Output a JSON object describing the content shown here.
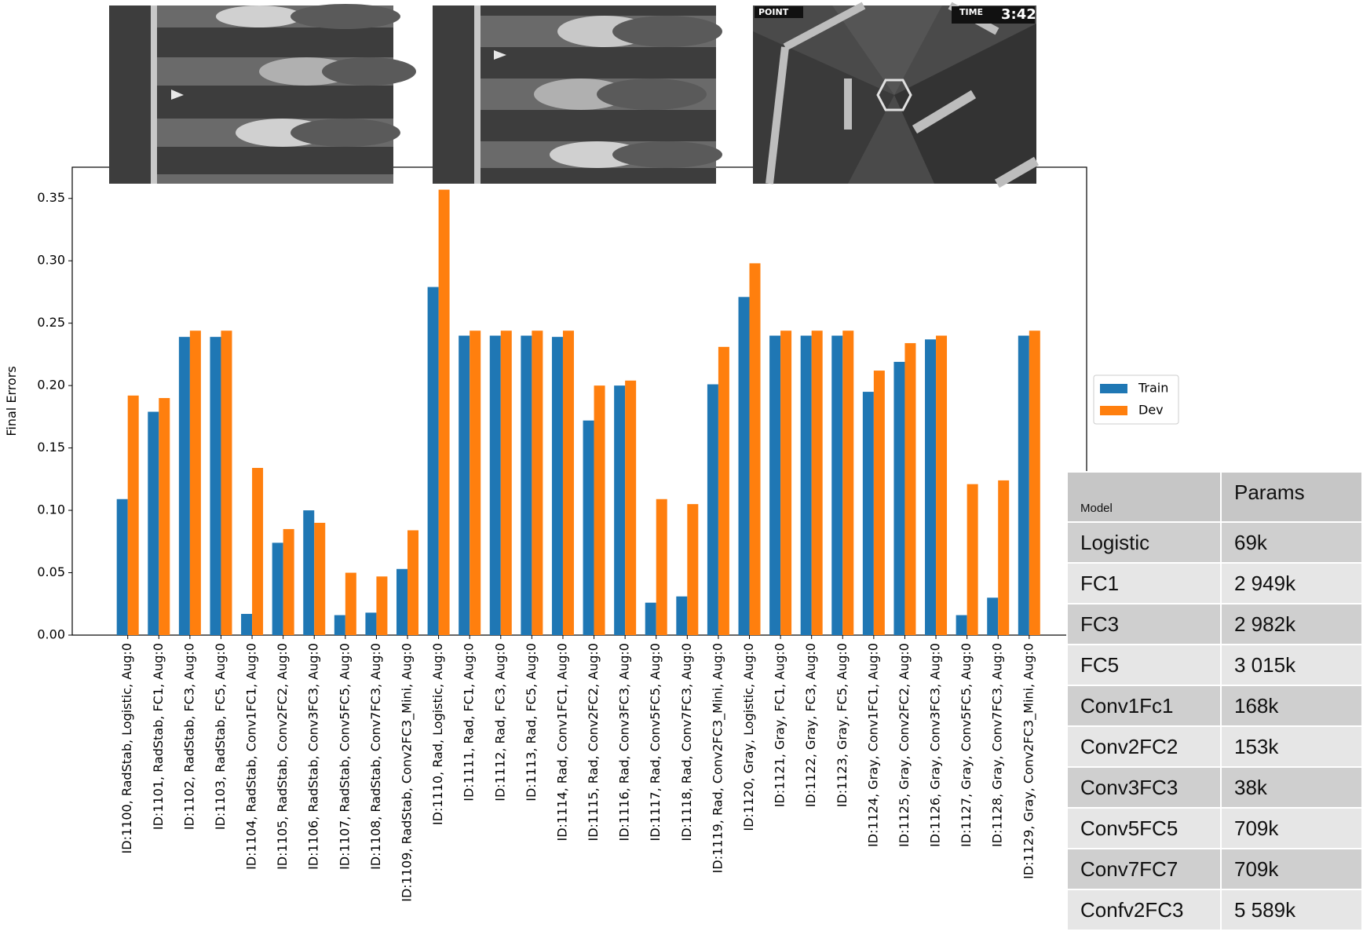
{
  "chart_data": {
    "type": "bar",
    "ylabel": "Final Errors",
    "categories": [
      "ID:1100, RadStab, Logistic, Aug:0",
      "ID:1101, RadStab, FC1, Aug:0",
      "ID:1102, RadStab, FC3, Aug:0",
      "ID:1103, RadStab, FC5, Aug:0",
      "ID:1104, RadStab, Conv1FC1, Aug:0",
      "ID:1105, RadStab, Conv2FC2, Aug:0",
      "ID:1106, RadStab, Conv3FC3, Aug:0",
      "ID:1107, RadStab, Conv5FC5, Aug:0",
      "ID:1108, RadStab, Conv7FC3, Aug:0",
      "ID:1109, RadStab, Conv2FC3_Mini, Aug:0",
      "ID:1110, Rad, Logistic, Aug:0",
      "ID:1111, Rad, FC1, Aug:0",
      "ID:1112, Rad, FC3, Aug:0",
      "ID:1113, Rad, FC5, Aug:0",
      "ID:1114, Rad, Conv1FC1, Aug:0",
      "ID:1115, Rad, Conv2FC2, Aug:0",
      "ID:1116, Rad, Conv3FC3, Aug:0",
      "ID:1117, Rad, Conv5FC5, Aug:0",
      "ID:1118, Rad, Conv7FC3, Aug:0",
      "ID:1119, Rad, Conv2FC3_Mini, Aug:0",
      "ID:1120, Gray, Logistic, Aug:0",
      "ID:1121, Gray, FC1, Aug:0",
      "ID:1122, Gray, FC3, Aug:0",
      "ID:1123, Gray, FC5, Aug:0",
      "ID:1124, Gray, Conv1FC1, Aug:0",
      "ID:1125, Gray, Conv2FC2, Aug:0",
      "ID:1126, Gray, Conv3FC3, Aug:0",
      "ID:1127, Gray, Conv5FC5, Aug:0",
      "ID:1128, Gray, Conv7FC3, Aug:0",
      "ID:1129, Gray, Conv2FC3_Mini, Aug:0"
    ],
    "series": [
      {
        "name": "Train",
        "color": "#1f77b4",
        "values": [
          0.109,
          0.179,
          0.239,
          0.239,
          0.017,
          0.074,
          0.1,
          0.016,
          0.018,
          0.053,
          0.279,
          0.24,
          0.24,
          0.24,
          0.239,
          0.172,
          0.2,
          0.026,
          0.031,
          0.201,
          0.271,
          0.24,
          0.24,
          0.24,
          0.195,
          0.219,
          0.237,
          0.016,
          0.03,
          0.24
        ]
      },
      {
        "name": "Dev",
        "color": "#ff7f0e",
        "values": [
          0.192,
          0.19,
          0.244,
          0.244,
          0.134,
          0.085,
          0.09,
          0.05,
          0.047,
          0.084,
          0.357,
          0.244,
          0.244,
          0.244,
          0.244,
          0.2,
          0.204,
          0.109,
          0.105,
          0.231,
          0.298,
          0.244,
          0.244,
          0.244,
          0.212,
          0.234,
          0.24,
          0.121,
          0.124,
          0.244
        ]
      }
    ],
    "ylim": [
      0,
      0.375
    ],
    "yticks": [
      {
        "value": 0,
        "label": "0.00"
      },
      {
        "value": 0.05,
        "label": "0.05"
      },
      {
        "value": 0.1,
        "label": "0.10"
      },
      {
        "value": 0.15,
        "label": "0.15"
      },
      {
        "value": 0.2,
        "label": "0.20"
      },
      {
        "value": 0.25,
        "label": "0.25"
      },
      {
        "value": 0.3,
        "label": "0.30"
      },
      {
        "value": 0.35,
        "label": "0.35"
      }
    ],
    "grid": false,
    "legend": "right"
  },
  "game_screen": {
    "hud_point": "POINT",
    "hud_time": "TIME",
    "hud_clock": "3:42"
  },
  "table": {
    "header": [
      "Model",
      "Params"
    ],
    "rows": [
      [
        "Logistic",
        "69k"
      ],
      [
        "FC1",
        "2 949k"
      ],
      [
        "FC3",
        "2 982k"
      ],
      [
        "FC5",
        "3 015k"
      ],
      [
        "Conv1Fc1",
        "168k"
      ],
      [
        "Conv2FC2",
        "153k"
      ],
      [
        "Conv3FC3",
        "38k"
      ],
      [
        "Conv5FC5",
        "709k"
      ],
      [
        "Conv7FC7",
        "709k"
      ],
      [
        "Confv2FC3",
        "5 589k"
      ]
    ]
  }
}
